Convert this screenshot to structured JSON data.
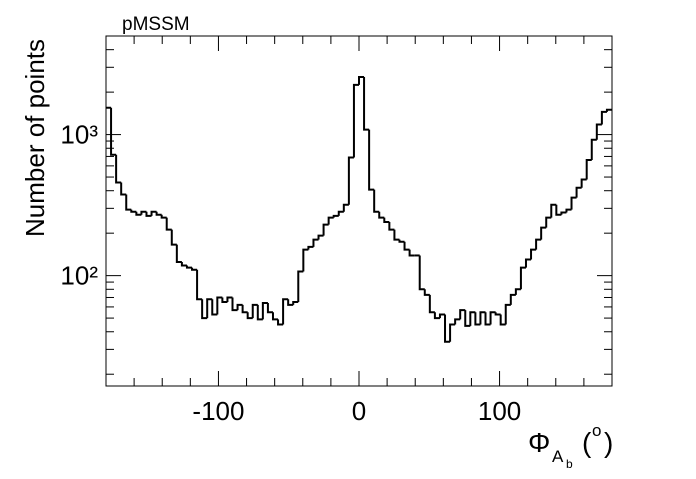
{
  "chart_data": {
    "type": "histogram",
    "title": "pMSSM",
    "ylabel": "Number of points",
    "xlabel": {
      "symbol": "Φ",
      "sub": "A",
      "subsub": "b",
      "open": "(",
      "unit": "o",
      "close": ")"
    },
    "color": "#000000",
    "yscale": "log",
    "xlim": [
      -180,
      180
    ],
    "xticks": [
      -100,
      0,
      100
    ],
    "xminorticks": [
      -160,
      -140,
      -120,
      -80,
      -60,
      -40,
      -20,
      20,
      40,
      60,
      80,
      120,
      140,
      160
    ],
    "ylim": [
      16.5,
      5000
    ],
    "yticks": [
      {
        "value": 100,
        "label": "10²"
      },
      {
        "value": 1000,
        "label": "10³"
      }
    ],
    "yminorticks": [
      20,
      30,
      40,
      50,
      60,
      70,
      80,
      90,
      200,
      300,
      400,
      500,
      600,
      700,
      800,
      900,
      2000,
      3000,
      4000,
      5000
    ],
    "bins": [
      -180,
      -176.4,
      -172.8,
      -169.2,
      -165.6,
      -162,
      -158.4,
      -154.8,
      -151.2,
      -147.6,
      -144,
      -140.4,
      -136.8,
      -133.2,
      -129.6,
      -126,
      -122.4,
      -118.8,
      -115.2,
      -111.6,
      -108,
      -104.4,
      -100.8,
      -97.2,
      -93.6,
      -90,
      -86.4,
      -82.8,
      -79.2,
      -75.6,
      -72,
      -68.4,
      -64.8,
      -61.2,
      -57.6,
      -54,
      -50.4,
      -46.8,
      -43.2,
      -39.6,
      -36,
      -32.4,
      -28.8,
      -25.2,
      -21.6,
      -18,
      -14.4,
      -10.8,
      -7.2,
      -3.6,
      0,
      3.6,
      7.2,
      10.8,
      14.4,
      18,
      21.6,
      25.2,
      28.8,
      32.4,
      36,
      39.6,
      43.2,
      46.8,
      50.4,
      54,
      57.6,
      61.2,
      64.8,
      68.4,
      72,
      75.6,
      79.2,
      82.8,
      86.4,
      90,
      93.6,
      97.2,
      100.8,
      104.4,
      108,
      111.6,
      115.2,
      118.8,
      122.4,
      126,
      129.6,
      133.2,
      136.8,
      140.4,
      144,
      147.6,
      151.2,
      154.8,
      158.4,
      162,
      165.6,
      169.2,
      172.8,
      176.4,
      180
    ],
    "values": [
      1550,
      720,
      457,
      376,
      294,
      284,
      270,
      284,
      265,
      284,
      270,
      258,
      212,
      166,
      125,
      118,
      114,
      110,
      68,
      50,
      68,
      53,
      70,
      65,
      70,
      57,
      62,
      55,
      50,
      62,
      49,
      64,
      55,
      49,
      45,
      68,
      62,
      65,
      107,
      153,
      160,
      180,
      192,
      230,
      258,
      265,
      284,
      318,
      688,
      2250,
      2560,
      1085,
      407,
      284,
      258,
      240,
      212,
      180,
      174,
      153,
      139,
      139,
      80,
      73,
      55,
      50,
      53,
      34,
      45,
      49,
      57,
      44,
      55,
      45,
      55,
      45,
      55,
      53,
      45,
      62,
      73,
      80,
      114,
      130,
      153,
      180,
      219,
      258,
      318,
      270,
      280,
      294,
      357,
      420,
      480,
      660,
      920,
      1180,
      1450,
      1500
    ]
  }
}
